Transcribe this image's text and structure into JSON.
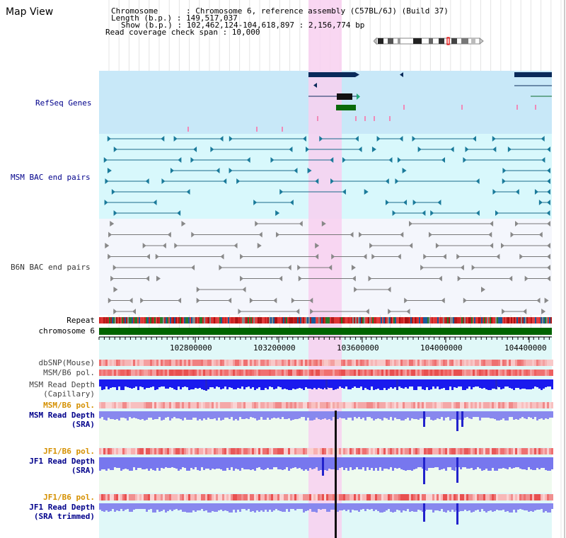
{
  "header": {
    "title": "Map View",
    "info_lines": [
      "Chromosome      : Chromosome 6, reference assembly (C57BL/6J) (Build 37)",
      "Length (b.p.) : 149,517,037",
      "Show (b.p.) : 102,462,124-104,618,897 : 2,156,774 bp",
      "Read coverage check span : 10,000"
    ]
  },
  "tracks": {
    "refseq": "RefSeq Genes",
    "msm_bac": "MSM BAC end pairs",
    "b6n_bac": "B6N BAC end pairs",
    "repeat": "Repeat",
    "chromosome": "chromosome 6",
    "dbsnp": "dbSNP(Mouse)",
    "msm_b6_pol": "MSM/B6 pol.",
    "msm_depth_cap_1": "MSM Read Depth",
    "msm_depth_cap_2": "(Capillary)",
    "msm_b6_pol_2": "MSM/B6 pol.",
    "msm_depth_sra_1": "MSM Read Depth",
    "msm_depth_sra_2": "(SRA)",
    "jf1_b6_pol": "JF1/B6 pol.",
    "jf1_depth_sra_1": "JF1 Read Depth",
    "jf1_depth_sra_2": "(SRA)",
    "jf1_b6_pol_2": "JF1/B6 pol.",
    "jf1_depth_trim_1": "JF1 Read Depth",
    "jf1_depth_trim_2": "(SRA trimmed)"
  },
  "axis": {
    "ticks": [
      "102800000",
      "103200000",
      "103600000",
      "104000000",
      "104400000"
    ]
  },
  "colors": {
    "highlight": "#f8d0f0",
    "refseq_bg": "#c8e8f8",
    "msm_bg": "#d8f8fc",
    "b6n_bg": "#f4f6fc",
    "chromosome": "#006400",
    "msm_track": "#1a6a8a",
    "gene_dark": "#0a2a5a",
    "depth_blue": "#1a1aee",
    "sra_blue": "#8888ee",
    "label_orange": "#d59000",
    "label_blue": "#00008b"
  }
}
